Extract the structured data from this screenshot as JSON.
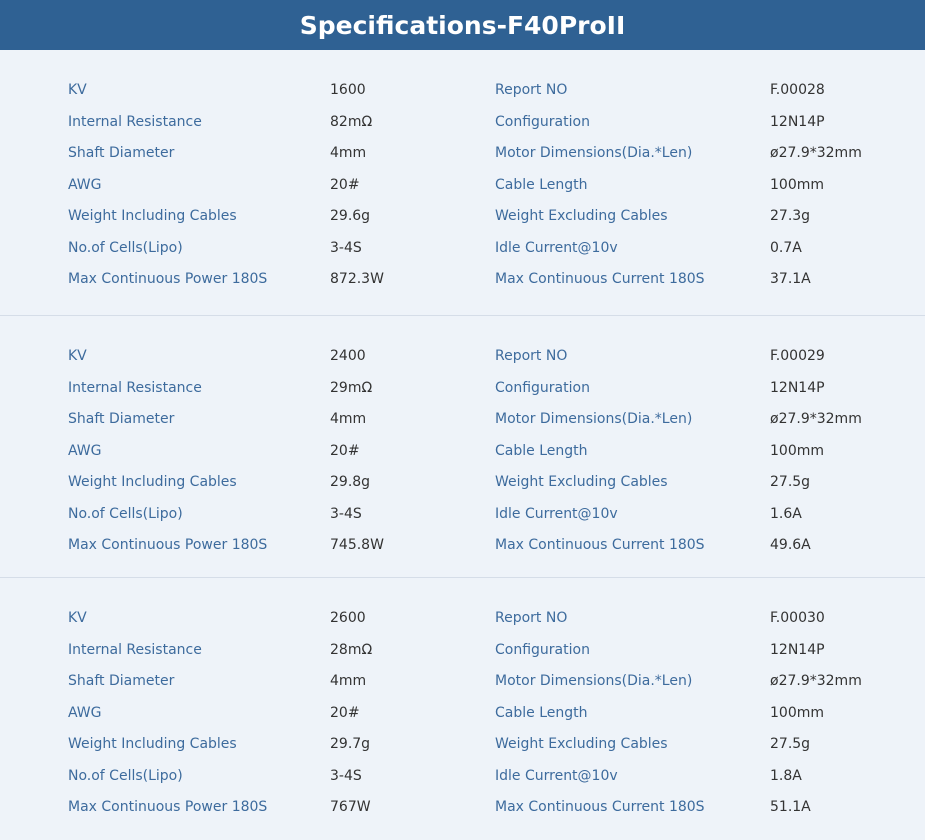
{
  "header": {
    "title": "Specifications-F40ProII"
  },
  "sections": [
    {
      "rows": [
        [
          "KV",
          "1600",
          "Report NO",
          "F.00028"
        ],
        [
          "Internal Resistance",
          "82mΩ",
          "Configuration",
          "12N14P"
        ],
        [
          "Shaft Diameter",
          "4mm",
          "Motor Dimensions(Dia.*Len)",
          "ø27.9*32mm"
        ],
        [
          "AWG",
          "20#",
          "Cable Length",
          "100mm"
        ],
        [
          "Weight Including Cables",
          "29.6g",
          "Weight Excluding Cables",
          "27.3g"
        ],
        [
          "No.of Cells(Lipo)",
          "3-4S",
          "Idle Current@10v",
          "0.7A"
        ],
        [
          "Max Continuous Power 180S",
          "872.3W",
          "Max Continuous Current 180S",
          "37.1A"
        ]
      ]
    },
    {
      "rows": [
        [
          "KV",
          "2400",
          "Report NO",
          "F.00029"
        ],
        [
          "Internal Resistance",
          "29mΩ",
          "Configuration",
          "12N14P"
        ],
        [
          "Shaft Diameter",
          "4mm",
          "Motor Dimensions(Dia.*Len)",
          "ø27.9*32mm"
        ],
        [
          "AWG",
          "20#",
          "Cable Length",
          "100mm"
        ],
        [
          "Weight Including Cables",
          "29.8g",
          "Weight Excluding Cables",
          "27.5g"
        ],
        [
          "No.of Cells(Lipo)",
          "3-4S",
          "Idle Current@10v",
          "1.6A"
        ],
        [
          "Max Continuous Power 180S",
          "745.8W",
          "Max Continuous Current 180S",
          "49.6A"
        ]
      ]
    },
    {
      "rows": [
        [
          "KV",
          "2600",
          "Report NO",
          "F.00030"
        ],
        [
          "Internal Resistance",
          "28mΩ",
          "Configuration",
          "12N14P"
        ],
        [
          "Shaft Diameter",
          "4mm",
          "Motor Dimensions(Dia.*Len)",
          "ø27.9*32mm"
        ],
        [
          "AWG",
          "20#",
          "Cable Length",
          "100mm"
        ],
        [
          "Weight Including Cables",
          "29.7g",
          "Weight Excluding Cables",
          "27.5g"
        ],
        [
          "No.of Cells(Lipo)",
          "3-4S",
          "Idle Current@10v",
          "1.8A"
        ],
        [
          "Max Continuous Power 180S",
          "767W",
          "Max Continuous Current 180S",
          "51.1A"
        ]
      ]
    }
  ]
}
